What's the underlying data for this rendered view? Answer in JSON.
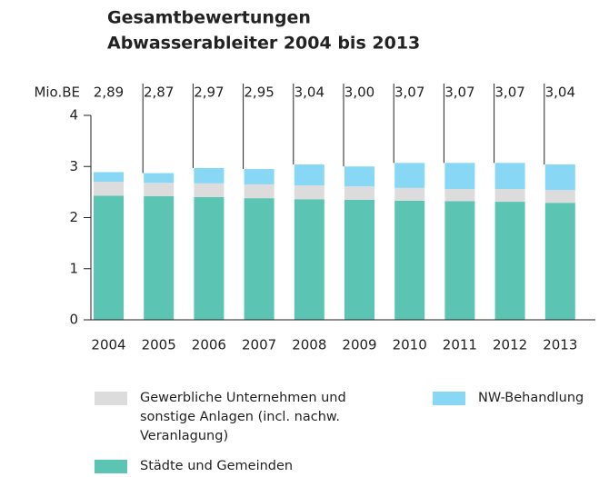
{
  "chart_data": {
    "type": "stacked_bar",
    "title": [
      "Gesamtbewertungen",
      "Abwasserableiter 2004 bis 2013"
    ],
    "y_unit_label": "Mio.BE",
    "categories": [
      "2004",
      "2005",
      "2006",
      "2007",
      "2008",
      "2009",
      "2010",
      "2011",
      "2012",
      "2013"
    ],
    "series": [
      {
        "name": "Städte und Gemeinden",
        "color": "#5cc4b3",
        "values": [
          2.43,
          2.42,
          2.4,
          2.38,
          2.36,
          2.35,
          2.33,
          2.32,
          2.31,
          2.29
        ]
      },
      {
        "name": "Gewerbliche Unternehmen und sonstige Anlagen (incl. nachw. Veranlagung)",
        "color": "#dcdcdc",
        "values": [
          0.27,
          0.26,
          0.27,
          0.27,
          0.27,
          0.26,
          0.25,
          0.24,
          0.25,
          0.25
        ]
      },
      {
        "name": "NW-Behandlung",
        "color": "#87d7f5",
        "values": [
          0.19,
          0.19,
          0.3,
          0.3,
          0.41,
          0.39,
          0.49,
          0.51,
          0.51,
          0.5
        ]
      }
    ],
    "totals": {
      "values": [
        2.89,
        2.87,
        2.97,
        2.95,
        3.04,
        3.0,
        3.07,
        3.07,
        3.07,
        3.04
      ],
      "value_labels": [
        "2,89",
        "2,87",
        "2,97",
        "2,95",
        "3,04",
        "3,00",
        "3,07",
        "3,07",
        "3,07",
        "3,04"
      ]
    },
    "ylim": [
      0,
      4
    ],
    "yticks": [
      0,
      1,
      2,
      3,
      4
    ]
  }
}
